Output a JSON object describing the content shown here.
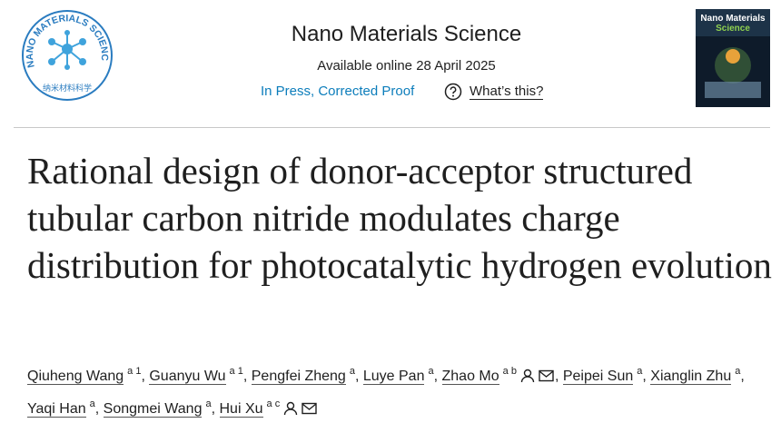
{
  "logo": {
    "ring_text": "NANO MATERIALS SCIENCE",
    "bottom_text": "纳米材料科学"
  },
  "journal": {
    "name": "Nano Materials Science",
    "available": "Available online 28 April 2025",
    "status": "In Press, Corrected Proof",
    "whats_this": "What’s this?"
  },
  "cover": {
    "title_line1": "Nano Materials",
    "title_line2": "Science"
  },
  "article": {
    "title": "Rational design of donor-acceptor structured tubular carbon nitride modulates charge distribution for photocatalytic hydrogen evolution",
    "separator": ",",
    "authors": [
      {
        "name": "Qiuheng Wang",
        "sup": "a 1",
        "corresponding": false
      },
      {
        "name": "Guanyu Wu",
        "sup": "a 1",
        "corresponding": false
      },
      {
        "name": "Pengfei Zheng",
        "sup": "a",
        "corresponding": false
      },
      {
        "name": "Luye Pan",
        "sup": "a",
        "corresponding": false
      },
      {
        "name": "Zhao Mo",
        "sup": "a b",
        "corresponding": true
      },
      {
        "name": "Peipei Sun",
        "sup": "a",
        "corresponding": false
      },
      {
        "name": "Xianglin Zhu",
        "sup": "a",
        "corresponding": false
      },
      {
        "name": "Yaqi Han",
        "sup": "a",
        "corresponding": false
      },
      {
        "name": "Songmei Wang",
        "sup": "a",
        "corresponding": false
      },
      {
        "name": "Hui Xu",
        "sup": "a c",
        "corresponding": true
      }
    ]
  }
}
